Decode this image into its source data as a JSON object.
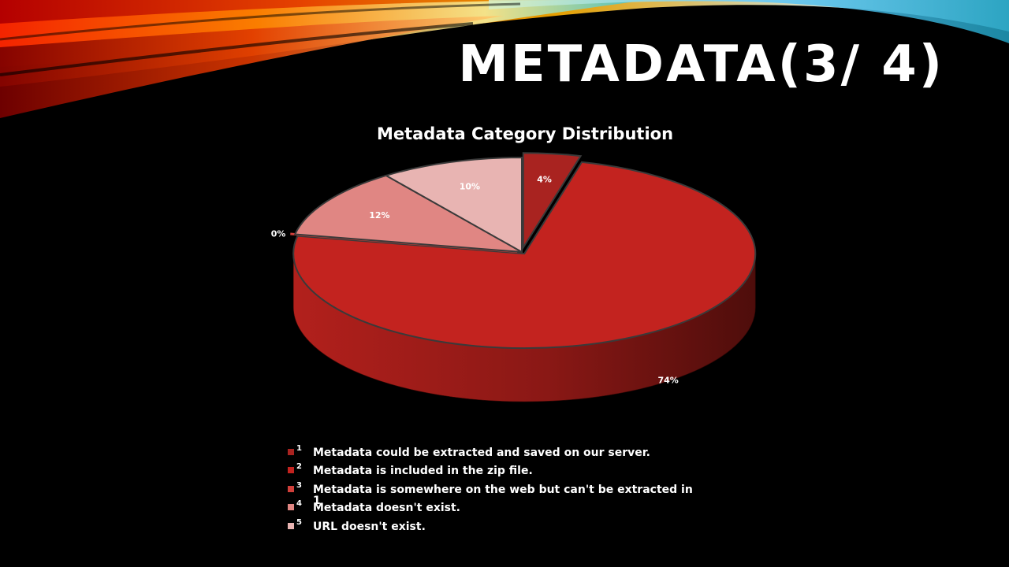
{
  "slide": {
    "title": "METADATA(3/ 4)"
  },
  "chart_data": {
    "type": "pie",
    "title": "Metadata Category Distribution",
    "series": [
      {
        "key": "1",
        "label": "Metadata could be extracted and saved on our server.",
        "value": 4,
        "data_label": "4%",
        "color": "#a92320"
      },
      {
        "key": "2",
        "label": "Metadata is included in the zip file.",
        "value": 74,
        "data_label": "74%",
        "color": "#c3231f"
      },
      {
        "key": "3",
        "label": "Metadata is somewhere on the web but can't be extracted in",
        "value": 0,
        "data_label": "0%",
        "color": "#d03f3a"
      },
      {
        "key": "4",
        "label": "Metadata doesn't exist.",
        "value": 12,
        "data_label": "12%",
        "color": "#e08683"
      },
      {
        "key": "5",
        "label": "URL doesn't exist.",
        "value": 10,
        "data_label": "10%",
        "color": "#e8b4b2"
      }
    ],
    "legend_overflow_mark": "1",
    "legend_position": "bottom",
    "style": "3d"
  }
}
